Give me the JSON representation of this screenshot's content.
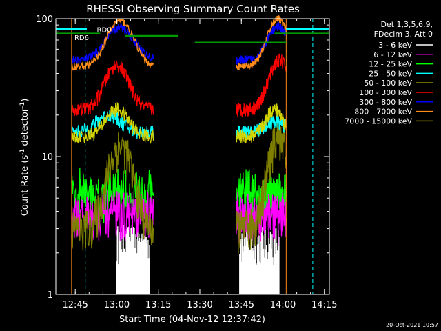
{
  "chart_data": {
    "type": "line",
    "title": "RHESSI Observing Summary Count Rates",
    "xlabel": "Start Time (04-Nov-12 12:37:42)",
    "ylabel": "Count Rate (s",
    "ylabel_sup1": "-1",
    "ylabel_mid": " detector",
    "ylabel_sup2": "-1",
    "ylabel_end": ")",
    "y_scale": "log",
    "ylim": [
      1,
      100
    ],
    "xlim_minutes": [
      12.633,
      14.28
    ],
    "x_ticks": [
      {
        "label": "12:45",
        "t": 12.75
      },
      {
        "label": "13:00",
        "t": 13.0
      },
      {
        "label": "13:15",
        "t": 13.25
      },
      {
        "label": "13:30",
        "t": 13.5
      },
      {
        "label": "13:45",
        "t": 13.75
      },
      {
        "label": "14:00",
        "t": 14.0
      },
      {
        "label": "14:15",
        "t": 14.25
      }
    ],
    "y_ticks": [
      {
        "label": "1",
        "v": 1
      },
      {
        "label": "10",
        "v": 10
      },
      {
        "label": "100",
        "v": 100
      }
    ],
    "legend_header": [
      "Det 1,3,5,6,9,",
      "FDecim 3, Att 0"
    ],
    "legend_position": "right",
    "series": [
      {
        "name": "3 - 6 keV",
        "color": "#ffffff"
      },
      {
        "name": "6 - 12 keV",
        "color": "#ff00ff"
      },
      {
        "name": "12 - 25 keV",
        "color": "#00ff00"
      },
      {
        "name": "25 - 50 keV",
        "color": "#00ffff"
      },
      {
        "name": "50 - 100 keV",
        "color": "#d4d400"
      },
      {
        "name": "100 - 300 keV",
        "color": "#ff0000"
      },
      {
        "name": "300 - 800 keV",
        "color": "#0000ff"
      },
      {
        "name": "800 - 7000 keV",
        "color": "#ff8c1a"
      },
      {
        "name": "7000 - 15000 keV",
        "color": "#808000"
      }
    ],
    "annotations": [
      {
        "text": "RD6",
        "color": "#009900"
      },
      {
        "text": "RD0",
        "color": "#009900"
      }
    ],
    "intervals": [
      {
        "start": 13.05,
        "end": 13.37,
        "value": 75,
        "color": "#009900"
      },
      {
        "start": 13.47,
        "end": 14.02,
        "value": 67,
        "color": "#009900"
      }
    ],
    "timestamp": "20-Oct-2021 10:57"
  }
}
